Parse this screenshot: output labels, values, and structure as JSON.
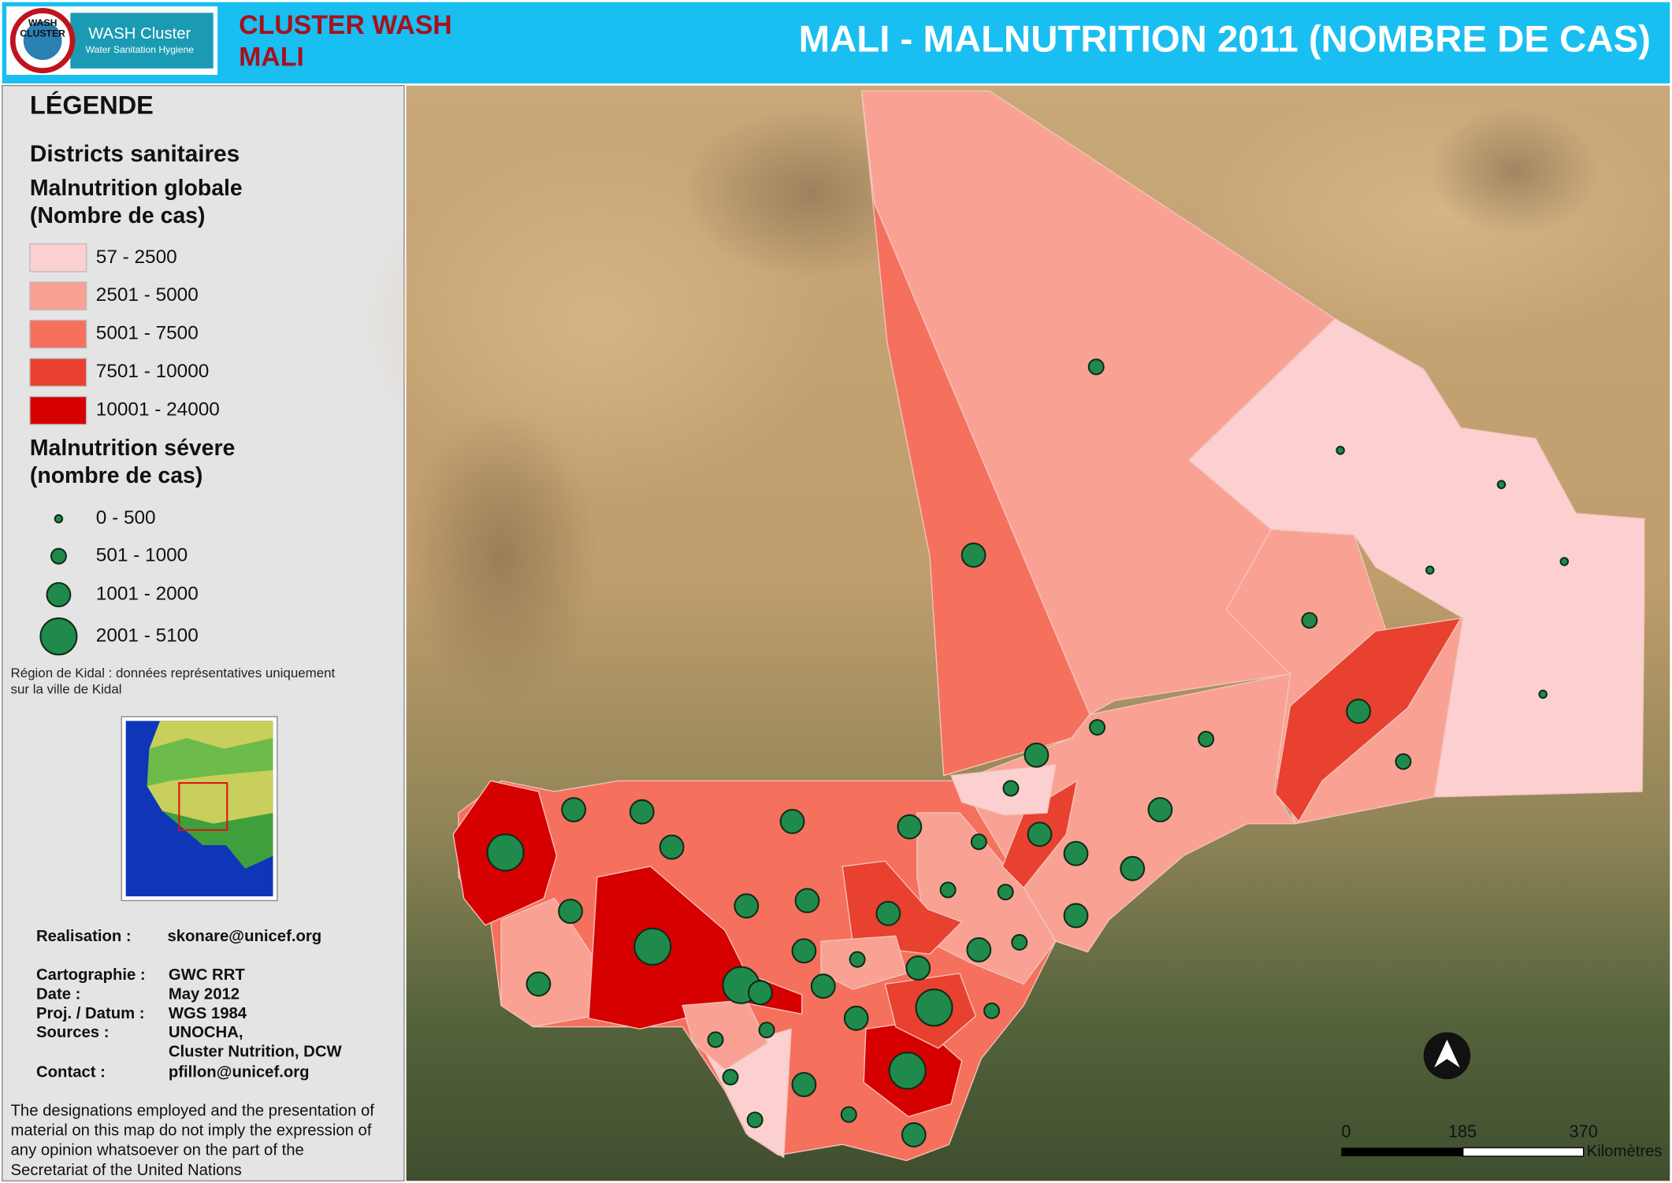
{
  "header": {
    "logo_badge": [
      "WASH",
      "CLUSTER"
    ],
    "logo_brand": "WASH Cluster",
    "logo_tagline": "Water Sanitation Hygiene",
    "org_lines": [
      "CLUSTER WASH",
      "MALI"
    ],
    "title": "MALI - MALNUTRITION 2011 (NOMBRE DE CAS)"
  },
  "legend": {
    "heading": "LÉGENDE",
    "districts": "Districts sanitaires",
    "global_title": [
      "Malnutrition globale",
      "(Nombre de cas)"
    ],
    "global_classes": [
      {
        "label": "57 - 2500",
        "color": "#fcd0d0"
      },
      {
        "label": "2501 - 5000",
        "color": "#f9a294"
      },
      {
        "label": "5001 - 7500",
        "color": "#f6705e"
      },
      {
        "label": "7501 - 10000",
        "color": "#e8412f"
      },
      {
        "label": "10001 - 24000",
        "color": "#d70000"
      }
    ],
    "severe_title": [
      "Malnutrition sévere",
      "(nombre de cas)"
    ],
    "severe_classes": [
      "0 - 500",
      "501 - 1000",
      "1001 - 2000",
      "2001 - 5100"
    ],
    "severe_color": "#1f8a4c",
    "note": [
      "Région de Kidal : données représentatives uniquement",
      "sur la ville de Kidal"
    ]
  },
  "credits": [
    [
      "Realisation :",
      "skonare@unicef.org"
    ],
    [
      "Cartographie :",
      "GWC RRT"
    ],
    [
      "Date :",
      "May 2012"
    ],
    [
      "Proj. / Datum :",
      "WGS 1984"
    ],
    [
      "Sources :",
      "UNOCHA,"
    ],
    [
      null,
      "Cluster Nutrition, DCW"
    ],
    [
      "Contact :",
      "pfillon@unicef.org"
    ]
  ],
  "disclaimer": [
    "The designations employed and the presentation of",
    "material on this map do not imply the expression of",
    "any opinion whatsoever on the part of the",
    "Secretariat of the United Nations"
  ],
  "scale_bar": {
    "ticks": [
      0,
      185,
      370
    ],
    "unit": "Kilomètres"
  }
}
